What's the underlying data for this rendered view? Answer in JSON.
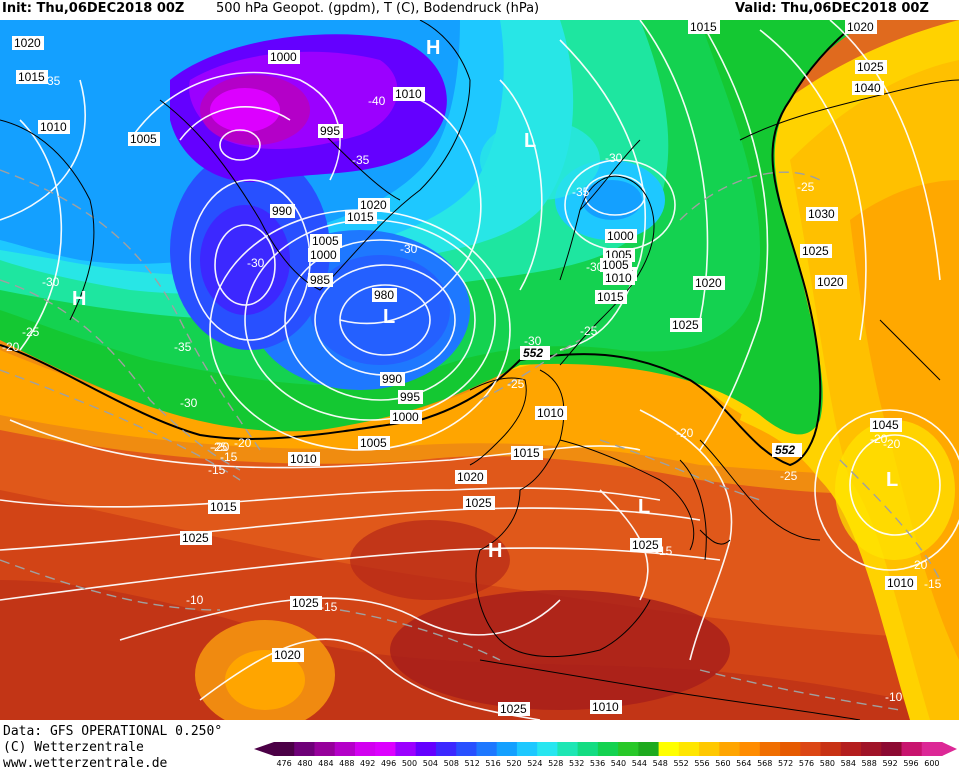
{
  "header": {
    "init": "Init: Thu,06DEC2018 00Z",
    "title": "500 hPa Geopot. (gpdm), T (C), Bodendruck (hPa)",
    "valid": "Valid: Thu,06DEC2018 00Z"
  },
  "footer": {
    "data_source": "Data: GFS OPERATIONAL 0.250°",
    "copyright": "(C) Wetterzentrale",
    "url": "www.wetterzentrale.de"
  },
  "colorbar": {
    "ticks": [
      "476",
      "480",
      "484",
      "488",
      "492",
      "496",
      "500",
      "504",
      "508",
      "512",
      "516",
      "520",
      "524",
      "528",
      "532",
      "536",
      "540",
      "544",
      "548",
      "552",
      "556",
      "560",
      "564",
      "568",
      "572",
      "576",
      "580",
      "584",
      "588",
      "592",
      "596",
      "600"
    ],
    "colors": [
      "#4b0046",
      "#6e0078",
      "#96009b",
      "#b400c8",
      "#d200f0",
      "#dc00ff",
      "#9b00ff",
      "#6400ff",
      "#3c28ff",
      "#2850ff",
      "#1e78ff",
      "#14a0ff",
      "#1ec8ff",
      "#28e6f0",
      "#1ee6b4",
      "#14dc82",
      "#14d250",
      "#28c828",
      "#1eaa1e",
      "#ffff00",
      "#ffe600",
      "#ffc800",
      "#ffa500",
      "#ff8c00",
      "#f06e00",
      "#e65a00",
      "#dc4614",
      "#c83214",
      "#b41e1e",
      "#a01428",
      "#8c0a32",
      "#c8146e",
      "#dc2896"
    ]
  },
  "isobar_labels": [
    "1020",
    "1015",
    "1010",
    "1005",
    "1000",
    "995",
    "990",
    "985",
    "980",
    "1005",
    "1000",
    "990",
    "1015",
    "1020",
    "995",
    "1000",
    "1005",
    "1010",
    "1010",
    "1005",
    "1010",
    "1015",
    "1020",
    "1025",
    "1020",
    "1025",
    "1025",
    "1020",
    "1025",
    "1015",
    "1010",
    "1015",
    "1000",
    "1005",
    "1010",
    "1020",
    "1025",
    "1030",
    "1025",
    "1020",
    "1040",
    "1045",
    "1010",
    "1015",
    "1025",
    "1025",
    "1010",
    "1015"
  ],
  "temp_labels": [
    "-35",
    "-40",
    "-35",
    "-30",
    "-30",
    "-30",
    "-25",
    "-35",
    "-30",
    "-30",
    "-35",
    "-25",
    "-25",
    "-30",
    "-25",
    "-20",
    "-15",
    "-20",
    "-15",
    "-10",
    "-15",
    "-15",
    "-10",
    "-25",
    "-20",
    "-20",
    "-20",
    "-15",
    "-10",
    "-25",
    "-20",
    "-30",
    "-20"
  ],
  "contour_552": "552",
  "systems": {
    "H_north": "H",
    "H_west": "H",
    "H_iberia": "H",
    "L_iceland": "L",
    "L_norway": "L",
    "L_med": "L",
    "L_east": "L"
  }
}
